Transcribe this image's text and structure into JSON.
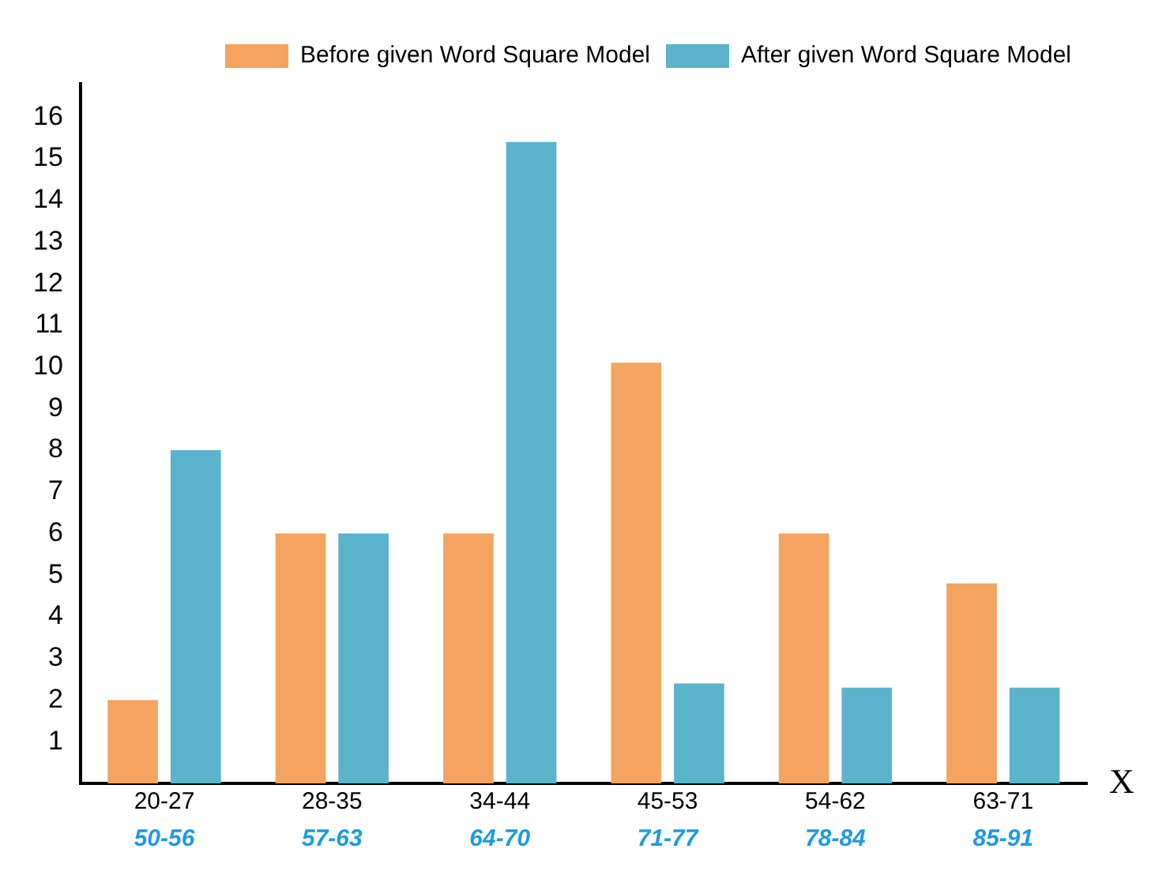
{
  "chart_data": {
    "type": "bar",
    "xlabel": "X",
    "categories": [
      "20-27",
      "28-35",
      "34-44",
      "45-53",
      "54-62",
      "63-71"
    ],
    "series": [
      {
        "name": "Before given Word Square Model",
        "color": "#f4a460",
        "values": [
          2,
          6,
          6,
          10.1,
          6,
          4.8
        ]
      },
      {
        "name": "After given Word Square Model",
        "color": "#5bb3cc",
        "values": [
          8,
          6,
          15.4,
          2.4,
          2.3,
          2.3
        ]
      }
    ],
    "annotations": [
      "50-56",
      "57-63",
      "64-70",
      "71-77",
      "78-84",
      "85-91"
    ],
    "ylim": [
      0,
      16.8
    ],
    "yticks": [
      1,
      2,
      3,
      4,
      5,
      6,
      7,
      8,
      9,
      10,
      11,
      12,
      13,
      14,
      15,
      16
    ],
    "grid": false,
    "legend": "top right"
  }
}
